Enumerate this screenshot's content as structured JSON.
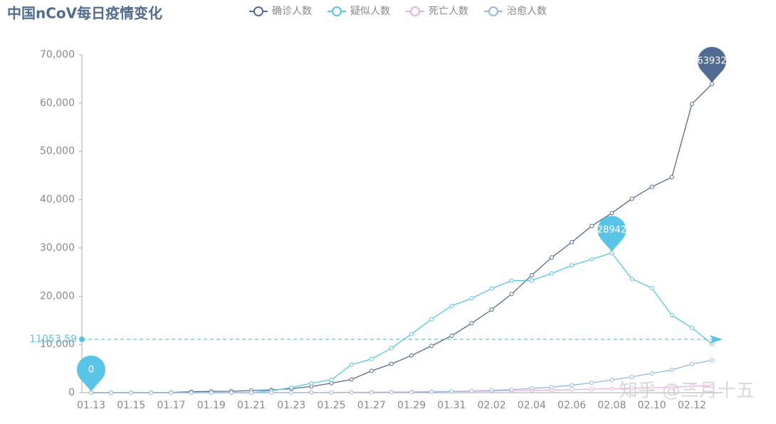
{
  "chart_data": {
    "type": "line",
    "title": "中国nCoV每日疫情变化",
    "watermark": "知乎 @三月十五",
    "categories": [
      "01.13",
      null,
      "01.15",
      null,
      "01.17",
      null,
      "01.19",
      null,
      "01.21",
      null,
      "01.23",
      null,
      "01.25",
      null,
      "01.27",
      null,
      "01.29",
      null,
      "01.31",
      null,
      "02.02",
      null,
      "02.04",
      null,
      "02.06",
      null,
      "02.08",
      null,
      "02.10",
      null,
      "02.12",
      null
    ],
    "ylim": [
      0,
      70000
    ],
    "yticks": [
      0,
      {
        "value": 10000,
        "label": "10,000"
      },
      {
        "value": 20000,
        "label": "20,000"
      },
      {
        "value": 30000,
        "label": "30,000"
      },
      {
        "value": 40000,
        "label": "40,000"
      },
      {
        "value": 50000,
        "label": "50,000"
      },
      {
        "value": 60000,
        "label": "60,000"
      },
      {
        "value": 70000,
        "label": "70,000"
      }
    ],
    "grid": false,
    "legend": "top",
    "series": [
      {
        "name": "确诊人数",
        "color": "#516b91",
        "mark_points": [
          "max"
        ],
        "values": [
          41,
          41,
          41,
          45,
          62,
          198,
          275,
          291,
          440,
          571,
          830,
          1287,
          1975,
          2744,
          4515,
          5974,
          7711,
          9692,
          11791,
          14380,
          17205,
          20438,
          24324,
          28018,
          31161,
          34546,
          37198,
          40171,
          42638,
          44653,
          59804,
          63932
        ]
      },
      {
        "name": "疑似人数",
        "color": "#59c4e6",
        "mark_points": [
          "max",
          "min"
        ],
        "mark_line": 11053.59,
        "values": [
          0,
          0,
          0,
          0,
          0,
          0,
          0,
          0,
          0,
          393,
          1072,
          1965,
          2684,
          5794,
          6973,
          9239,
          12167,
          15238,
          17988,
          19544,
          21558,
          23214,
          23260,
          24702,
          26359,
          27657,
          28942,
          23589,
          21675,
          16067,
          13435,
          10109
        ]
      },
      {
        "name": "死亡人数",
        "color": "#edafda",
        "mark_points": [],
        "values": [
          1,
          1,
          1,
          2,
          2,
          3,
          4,
          6,
          9,
          17,
          25,
          41,
          56,
          80,
          106,
          132,
          170,
          213,
          259,
          304,
          361,
          425,
          490,
          563,
          636,
          722,
          811,
          908,
          1016,
          1113,
          1367,
          1380
        ]
      },
      {
        "name": "治愈人数",
        "color": "#93b7e3",
        "mark_points": [],
        "values": [
          0,
          0,
          0,
          0,
          0,
          0,
          0,
          0,
          0,
          28,
          34,
          38,
          49,
          51,
          60,
          103,
          124,
          171,
          243,
          328,
          475,
          632,
          892,
          1153,
          1540,
          2050,
          2649,
          3281,
          3996,
          4740,
          5911,
          6723
        ]
      }
    ]
  }
}
